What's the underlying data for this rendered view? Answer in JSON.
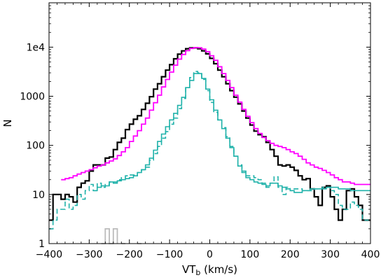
{
  "chart_data": {
    "type": "histogram",
    "xlabel": "VT",
    "xlabel_sub": "b",
    "xlabel_unit": " (km/s)",
    "ylabel": "N",
    "xlim": [
      -400,
      400
    ],
    "ylim": [
      1,
      80000
    ],
    "yscale": "log",
    "grid": false,
    "xticks": [
      -400,
      -300,
      -200,
      -100,
      0,
      100,
      200,
      300,
      400
    ],
    "xtick_labels": [
      "−400",
      "−300",
      "−200",
      "−100",
      "0",
      "100",
      "200",
      "300",
      "400"
    ],
    "yticks": [
      1,
      10,
      100,
      1000,
      10000
    ],
    "ytick_labels": [
      "1",
      "10",
      "100",
      "1000",
      "1e4"
    ],
    "bin_width": 10,
    "bin_start": -400,
    "series": [
      {
        "color": "#000000",
        "style": "solid",
        "width": 2.2,
        "values": [
          3,
          10,
          10,
          8,
          10,
          9,
          7,
          14,
          17,
          19,
          30,
          40,
          40,
          40,
          55,
          58,
          82,
          115,
          140,
          210,
          270,
          340,
          400,
          540,
          720,
          980,
          1400,
          1800,
          2500,
          3400,
          4400,
          5800,
          7200,
          8400,
          9300,
          9700,
          9700,
          9300,
          8400,
          7300,
          5900,
          4600,
          3400,
          2500,
          1800,
          1300,
          960,
          700,
          500,
          360,
          260,
          195,
          165,
          150,
          115,
          82,
          60,
          40,
          38,
          40,
          36,
          31,
          24,
          20,
          21,
          13,
          9,
          6,
          14,
          15,
          9,
          5,
          3,
          5,
          12,
          13,
          9,
          6,
          3,
          3
        ]
      },
      {
        "color": "#ff00ff",
        "style": "solid",
        "width": 1.8,
        "values": [
          null,
          null,
          null,
          20,
          21,
          22,
          24,
          26,
          28,
          30,
          32,
          35,
          38,
          40,
          44,
          48,
          53,
          62,
          74,
          90,
          120,
          155,
          200,
          270,
          360,
          520,
          740,
          1050,
          1550,
          2200,
          3100,
          4300,
          5700,
          7100,
          8500,
          9400,
          9800,
          9700,
          9100,
          8100,
          6700,
          5400,
          4000,
          2900,
          2100,
          1500,
          1050,
          760,
          540,
          390,
          290,
          220,
          175,
          145,
          125,
          110,
          100,
          95,
          90,
          82,
          74,
          68,
          60,
          52,
          44,
          40,
          36,
          34,
          31,
          28,
          25,
          22,
          20,
          18,
          18,
          17,
          16,
          16,
          16,
          16
        ]
      },
      {
        "color": "#20b2aa",
        "style": "dashed",
        "width": 1.6,
        "values": [
          2,
          3,
          5,
          5,
          8,
          5,
          6,
          10,
          8,
          12,
          16,
          12,
          17,
          14,
          16,
          18,
          18,
          20,
          22,
          24,
          25,
          25,
          28,
          32,
          36,
          50,
          68,
          95,
          140,
          190,
          270,
          360,
          560,
          900,
          1500,
          2400,
          3200,
          3000,
          2200,
          1300,
          750,
          470,
          330,
          230,
          150,
          95,
          60,
          40,
          30,
          24,
          24,
          22,
          20,
          17,
          14,
          17,
          23,
          14,
          10,
          14,
          12,
          13,
          13,
          12,
          12,
          12,
          13,
          13,
          14,
          14,
          12,
          10,
          6,
          5,
          5,
          7,
          6,
          5,
          3,
          3
        ]
      },
      {
        "color": "#20b2aa",
        "style": "solid",
        "width": 1.6,
        "values": [
          null,
          null,
          null,
          null,
          null,
          null,
          null,
          null,
          null,
          null,
          null,
          12,
          14,
          15,
          15,
          18,
          17,
          19,
          20,
          21,
          22,
          24,
          28,
          32,
          40,
          55,
          80,
          120,
          170,
          240,
          330,
          450,
          650,
          950,
          1500,
          2100,
          2900,
          2900,
          2300,
          1400,
          850,
          520,
          330,
          220,
          140,
          90,
          60,
          38,
          28,
          22,
          20,
          18,
          17,
          16,
          15,
          17,
          17,
          15,
          14,
          13,
          12,
          11,
          11,
          12,
          12,
          13,
          13,
          13,
          13,
          14,
          14,
          14,
          13,
          13,
          13,
          12,
          12,
          12,
          12,
          12
        ]
      },
      {
        "color": "#bbbbbb",
        "style": "solid",
        "width": 1.8,
        "values": [
          null,
          null,
          null,
          null,
          null,
          null,
          null,
          null,
          null,
          null,
          null,
          null,
          null,
          1,
          2,
          1,
          2,
          null,
          1,
          null,
          null,
          null,
          1,
          null,
          null,
          null,
          null,
          null,
          null,
          null,
          null,
          null,
          null,
          null,
          null,
          null,
          null,
          null,
          null,
          null,
          null,
          null,
          null,
          null,
          null,
          null,
          null,
          null,
          null,
          null,
          null,
          null,
          null,
          null,
          null,
          null,
          null,
          null,
          null,
          null,
          null,
          null,
          null,
          null,
          null,
          null,
          null,
          null,
          null,
          null,
          null,
          null,
          null,
          null,
          null,
          null,
          null,
          null,
          null,
          null
        ]
      }
    ]
  }
}
